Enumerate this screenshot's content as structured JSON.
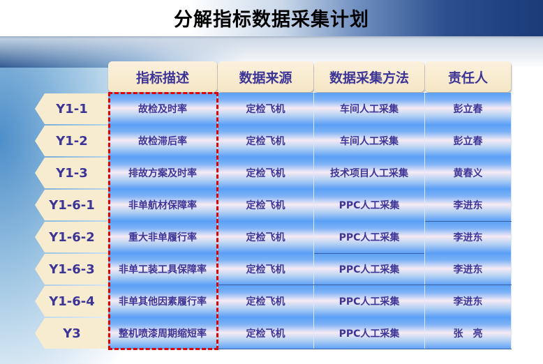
{
  "title": "分解指标数据采集计划",
  "headers": [
    "指标描述",
    "数据来源",
    "数据采集方法",
    "责任人"
  ],
  "rows": [
    {
      "id": "Y1-1",
      "desc": "故检及时率",
      "source": "定检飞机",
      "method": "车间人工采集",
      "owner": "彭立春"
    },
    {
      "id": "Y1-2",
      "desc": "故检滞后率",
      "source": "定检飞机",
      "method": "车间人工采集",
      "owner": "彭立春"
    },
    {
      "id": "Y1-3",
      "desc": "排故方案及时率",
      "source": "定检飞机",
      "method": "技术项目人工采集",
      "owner": "黄春义"
    },
    {
      "id": "Y1-6-1",
      "desc": "非单航材保障率",
      "source": "定检飞机",
      "method": "PPC人工采集",
      "owner": "李进东"
    },
    {
      "id": "Y1-6-2",
      "desc": "重大非单履行率",
      "source": "定检飞机",
      "method": "PPC人工采集",
      "owner": "李进东"
    },
    {
      "id": "Y1-6-3",
      "desc": "非单工装工具保障率",
      "source": "定检飞机",
      "method": "PPC人工采集",
      "owner": "李进东"
    },
    {
      "id": "Y1-6-4",
      "desc": "非单其他因素履行率",
      "source": "定检飞机",
      "method": "PPC人工采集",
      "owner": "李进东"
    },
    {
      "id": "Y3",
      "desc": "整机喷漆周期缩短率",
      "source": "定检飞机",
      "method": "PPC人工采集",
      "owner": "张　亮"
    }
  ],
  "colors": {
    "text": "#3d3596",
    "highlight": "#e00000",
    "header_bg": "#f7ebd0"
  }
}
